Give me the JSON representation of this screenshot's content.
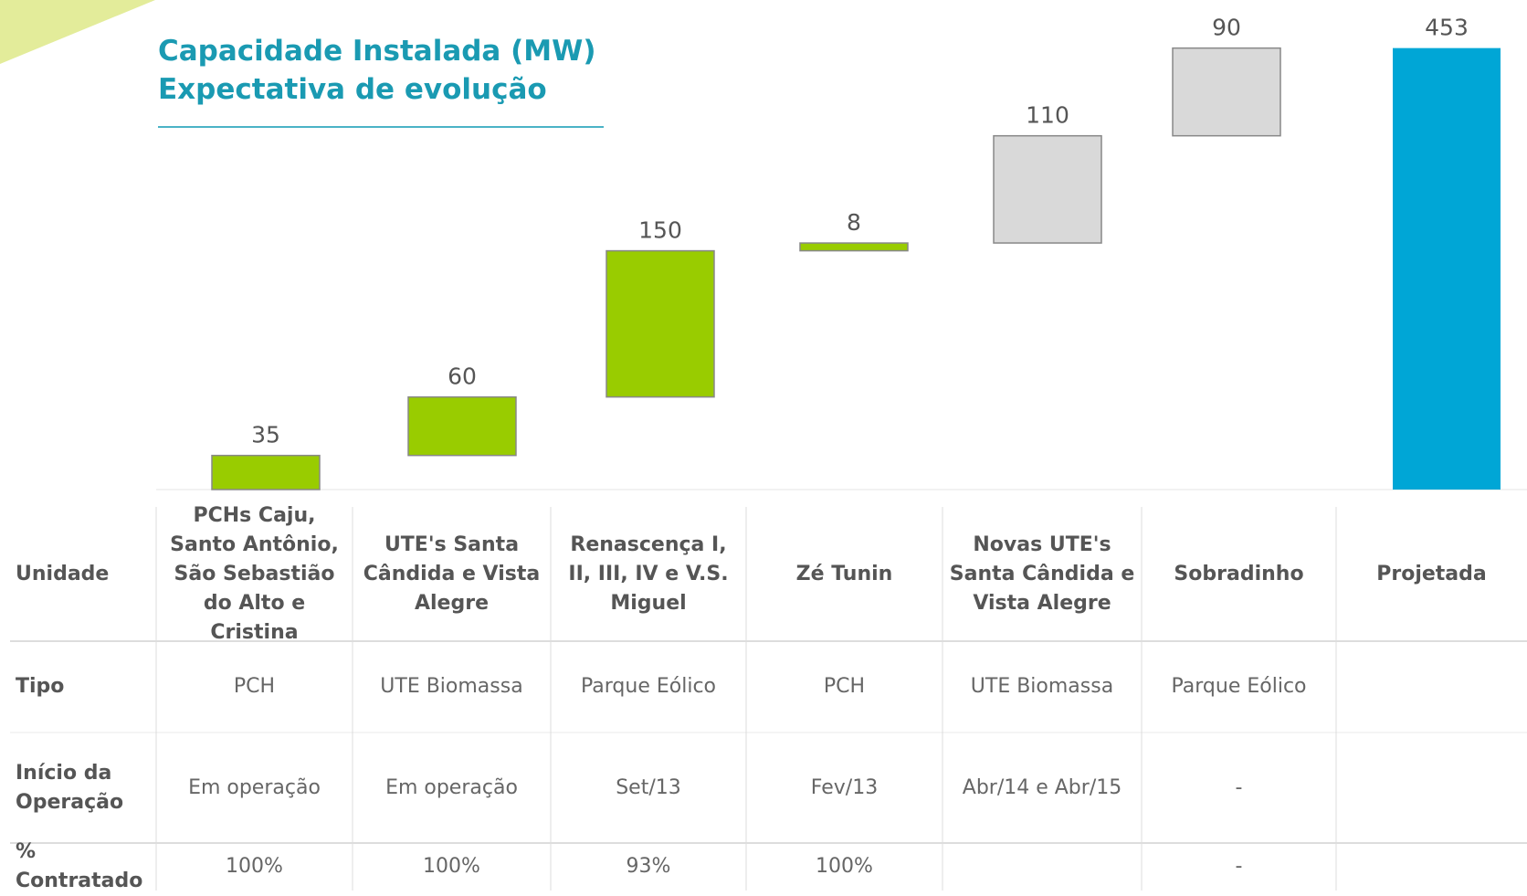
{
  "chart_data": {
    "type": "waterfall",
    "title": "Capacidade Instalada (MW)",
    "subtitle": "Expectativa de evolução",
    "categories": [
      "PCHs Caju, Santo Antônio, São Sebastião do Alto e Cristina",
      "UTE's Santa Cândida e Vista Alegre",
      "Renascença I, II, III, IV e V.S. Miguel",
      "Zé Tunin",
      "Novas UTE's Santa Cândida e Vista Alegre",
      "Sobradinho",
      "Projetada"
    ],
    "values": [
      35,
      60,
      150,
      8,
      110,
      90,
      453
    ],
    "measure": [
      "relative",
      "relative",
      "relative",
      "relative",
      "relative",
      "relative",
      "total"
    ],
    "colors": [
      "#99cc00",
      "#99cc00",
      "#99cc00",
      "#99cc00",
      "#d9d9d9",
      "#d9d9d9",
      "#00a6d6"
    ]
  },
  "table": {
    "row_labels": [
      "Unidade",
      "Tipo",
      "Início da Operação",
      "% Contratado"
    ],
    "tipo": [
      "PCH",
      "UTE Biomassa",
      "Parque Eólico",
      "PCH",
      "UTE Biomassa",
      "Parque Eólico",
      null
    ],
    "inicio": [
      "Em operação",
      "Em operação",
      "Set/13",
      "Fev/13",
      "Abr/14 e Abr/15",
      "-",
      null
    ],
    "contratado": [
      "100%",
      "100%",
      "93%",
      "100%",
      null,
      "-",
      null
    ]
  }
}
